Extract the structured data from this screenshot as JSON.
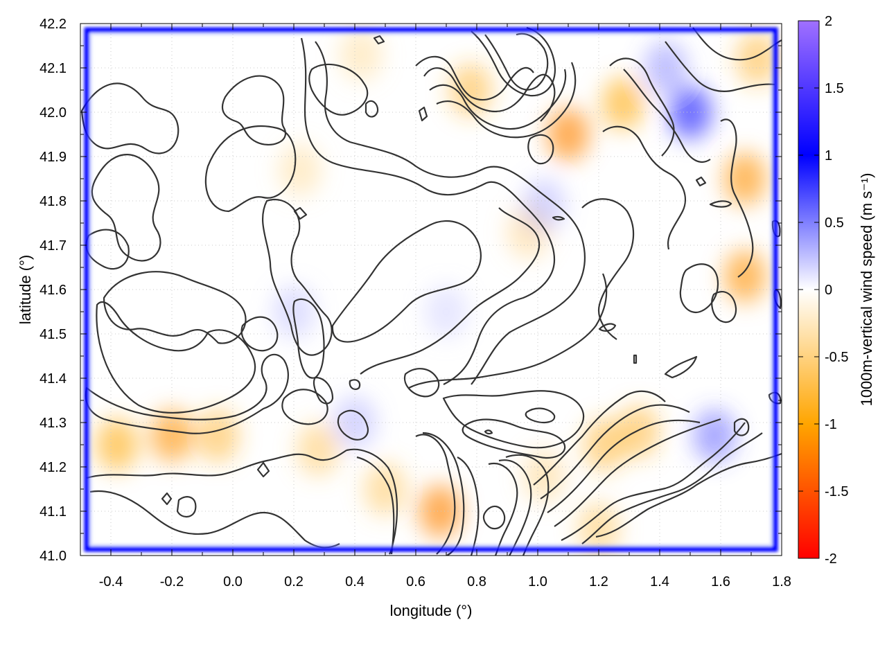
{
  "chart_data": {
    "type": "heatmap",
    "xlabel": "longitude (°)",
    "ylabel": "latitude (°)",
    "colorbar_label": "1000m-vertical wind speed (m s⁻¹)",
    "xlim": [
      -0.5,
      1.8
    ],
    "ylim": [
      41.0,
      42.2
    ],
    "xticks": [
      "-0.4",
      "-0.2",
      "0.0",
      "0.2",
      "0.4",
      "0.6",
      "0.8",
      "1.0",
      "1.2",
      "1.4",
      "1.6",
      "1.8"
    ],
    "xtick_values": [
      -0.4,
      -0.2,
      0.0,
      0.2,
      0.4,
      0.6,
      0.8,
      1.0,
      1.2,
      1.4,
      1.6,
      1.8
    ],
    "yticks": [
      "41.0",
      "41.1",
      "41.2",
      "41.3",
      "41.4",
      "41.5",
      "41.6",
      "41.7",
      "41.8",
      "41.9",
      "42.0",
      "42.1",
      "42.2"
    ],
    "ytick_values": [
      41.0,
      41.1,
      41.2,
      41.3,
      41.4,
      41.5,
      41.6,
      41.7,
      41.8,
      41.9,
      42.0,
      42.1,
      42.2
    ],
    "colorbar_ticks": [
      "2",
      "1.5",
      "1",
      "0.5",
      "0",
      "-0.5",
      "-1",
      "-1.5",
      "-2"
    ],
    "colorbar_tick_values": [
      2,
      1.5,
      1,
      0.5,
      0,
      -0.5,
      -1,
      -1.5,
      -2
    ],
    "zlim": [
      -2,
      2
    ],
    "grid": true,
    "colormap": [
      {
        "value": -2,
        "color": "#ff0000"
      },
      {
        "value": -1,
        "color": "#ffa500"
      },
      {
        "value": 0,
        "color": "#ffffff"
      },
      {
        "value": 1,
        "color": "#0000ff"
      },
      {
        "value": 2,
        "color": "#a070ff"
      }
    ],
    "anomalies": [
      {
        "lon": -0.38,
        "lat": 41.25,
        "w": -0.7
      },
      {
        "lon": -0.2,
        "lat": 41.27,
        "w": -0.8
      },
      {
        "lon": -0.05,
        "lat": 41.27,
        "w": -0.6
      },
      {
        "lon": 0.28,
        "lat": 41.24,
        "w": -0.5
      },
      {
        "lon": 0.5,
        "lat": 41.15,
        "w": -0.5
      },
      {
        "lon": 0.68,
        "lat": 41.1,
        "w": -0.9
      },
      {
        "lon": 0.78,
        "lat": 42.05,
        "w": -0.6
      },
      {
        "lon": 1.1,
        "lat": 41.95,
        "w": -0.9
      },
      {
        "lon": 1.28,
        "lat": 42.02,
        "w": -0.7
      },
      {
        "lon": 1.33,
        "lat": 41.28,
        "w": -0.6
      },
      {
        "lon": 1.22,
        "lat": 41.25,
        "w": -0.6
      },
      {
        "lon": 1.68,
        "lat": 41.85,
        "w": -0.8
      },
      {
        "lon": 1.68,
        "lat": 41.63,
        "w": -0.8
      },
      {
        "lon": 1.72,
        "lat": 42.12,
        "w": -0.6
      },
      {
        "lon": 0.22,
        "lat": 41.87,
        "w": -0.35
      },
      {
        "lon": 0.97,
        "lat": 41.73,
        "w": -0.4
      },
      {
        "lon": 1.02,
        "lat": 41.18,
        "w": -0.4
      },
      {
        "lon": 1.2,
        "lat": 41.06,
        "w": -0.5
      },
      {
        "lon": 0.42,
        "lat": 42.13,
        "w": -0.35
      },
      {
        "lon": 1.5,
        "lat": 42.0,
        "w": 0.7
      },
      {
        "lon": 1.42,
        "lat": 42.1,
        "w": 0.4
      },
      {
        "lon": 1.58,
        "lat": 41.27,
        "w": 0.5
      },
      {
        "lon": 1.02,
        "lat": 41.79,
        "w": 0.3
      },
      {
        "lon": 0.4,
        "lat": 41.3,
        "w": 0.3
      },
      {
        "lon": 0.2,
        "lat": 41.55,
        "w": 0.25
      },
      {
        "lon": 0.7,
        "lat": 41.55,
        "w": 0.2
      }
    ]
  }
}
